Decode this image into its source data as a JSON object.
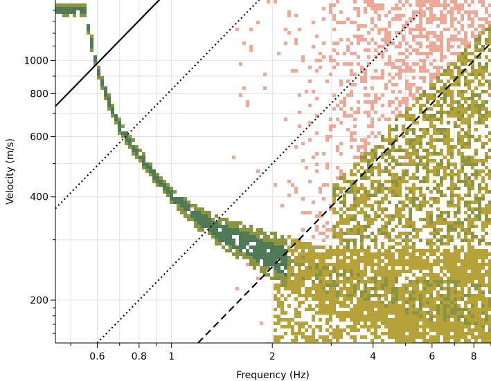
{
  "chart_data": {
    "type": "heatmap",
    "title": "",
    "xlabel": "Frequency (Hz)",
    "ylabel": "Velocity (m/s)",
    "x_scale": "log",
    "y_scale": "log",
    "xlim": [
      0.45,
      9.0
    ],
    "ylim": [
      150,
      1500
    ],
    "x_ticks": [
      {
        "value": 0.6,
        "label": "0.6"
      },
      {
        "value": 0.8,
        "label": "0.8"
      },
      {
        "value": 1,
        "label": "1"
      },
      {
        "value": 2,
        "label": "2"
      },
      {
        "value": 4,
        "label": "4"
      },
      {
        "value": 6,
        "label": "6"
      },
      {
        "value": 8,
        "label": "8"
      }
    ],
    "y_ticks": [
      {
        "value": 200,
        "label": "200"
      },
      {
        "value": 400,
        "label": "400"
      },
      {
        "value": 600,
        "label": "600"
      },
      {
        "value": 800,
        "label": "800"
      },
      {
        "value": 1000,
        "label": "1000"
      }
    ],
    "grid": true,
    "legend": "none",
    "colors": {
      "dense": "#4e7a55",
      "medium": "#8b9440",
      "sparse": "#b7a23a",
      "faint": "#eea896"
    },
    "dispersion_curve": [
      {
        "f": 0.55,
        "v": 1400
      },
      {
        "f": 0.6,
        "v": 950
      },
      {
        "f": 0.65,
        "v": 760
      },
      {
        "f": 0.7,
        "v": 640
      },
      {
        "f": 0.8,
        "v": 530
      },
      {
        "f": 0.9,
        "v": 455
      },
      {
        "f": 1.0,
        "v": 405
      },
      {
        "f": 1.2,
        "v": 348
      },
      {
        "f": 1.4,
        "v": 315
      },
      {
        "f": 1.7,
        "v": 290
      },
      {
        "f": 2.0,
        "v": 268
      },
      {
        "f": 2.5,
        "v": 245
      },
      {
        "f": 3.0,
        "v": 228
      },
      {
        "f": 4.0,
        "v": 212
      },
      {
        "f": 6.0,
        "v": 200
      },
      {
        "f": 9.0,
        "v": 190
      }
    ],
    "reference_lines": [
      {
        "style": "solid",
        "points": [
          [
            0.45,
            735
          ],
          [
            1.0,
            1633
          ]
        ]
      },
      {
        "style": "dotted",
        "points": [
          [
            0.45,
            370
          ],
          [
            2.0,
            1644
          ]
        ]
      },
      {
        "style": "dotted",
        "points": [
          [
            0.6,
            150
          ],
          [
            5.5,
            1375
          ]
        ]
      },
      {
        "style": "dashed",
        "points": [
          [
            1.2,
            150
          ],
          [
            9.0,
            1125
          ]
        ]
      }
    ]
  }
}
